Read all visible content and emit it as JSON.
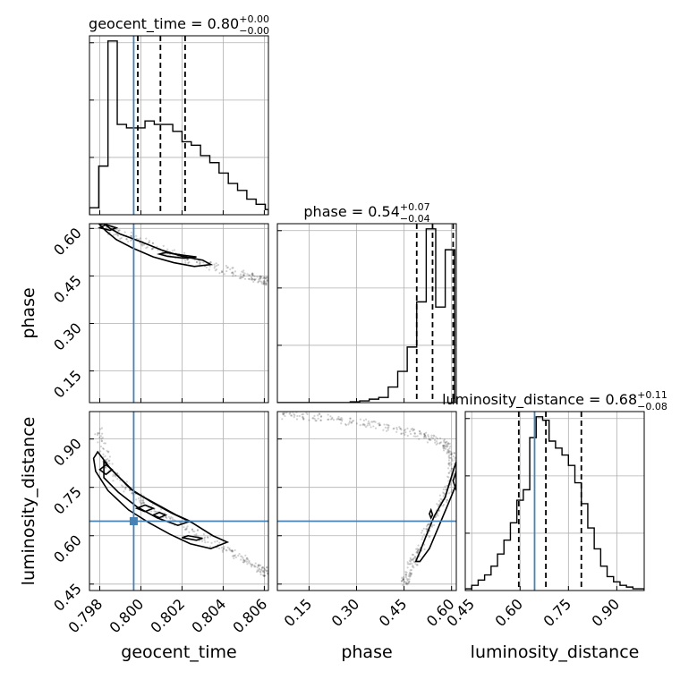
{
  "chart_data": {
    "type": "scatter",
    "parameters": [
      {
        "name": "geocent_time",
        "axis_label": "geocent_time",
        "range": [
          0.7975,
          0.8062
        ],
        "ticks": [
          0.798,
          0.8,
          0.802,
          0.804,
          0.806
        ],
        "tick_labels": [
          "0.798",
          "0.800",
          "0.802",
          "0.804",
          "0.806"
        ],
        "title": "geocent_time = 0.80",
        "title_sup": "+0.00",
        "title_sub": "−0.00"
      },
      {
        "name": "phase",
        "axis_label": "phase",
        "range": [
          0.05,
          0.615
        ],
        "ticks": [
          0.15,
          0.3,
          0.45,
          0.6
        ],
        "tick_labels": [
          "0.15",
          "0.30",
          "0.45",
          "0.60"
        ],
        "title": "phase = 0.54",
        "title_sup": "+0.07",
        "title_sub": "−0.04"
      },
      {
        "name": "luminosity_distance",
        "axis_label": "luminosity_distance",
        "range": [
          0.43,
          0.985
        ],
        "ticks": [
          0.45,
          0.6,
          0.75,
          0.9
        ],
        "tick_labels": [
          "0.45",
          "0.60",
          "0.75",
          "0.90"
        ],
        "title": "luminosity_distance = 0.68",
        "title_sup": "+0.11",
        "title_sub": "−0.08"
      }
    ],
    "truths": {
      "geocent_time": 0.79965,
      "phase": null,
      "luminosity_distance": 0.645
    },
    "quantiles": {
      "geocent_time": [
        0.79985,
        0.80095,
        0.80215
      ],
      "phase": [
        0.49,
        0.54,
        0.605
      ],
      "luminosity_distance": [
        0.596,
        0.68,
        0.79
      ]
    },
    "histograms": {
      "geocent_time": {
        "edges": [
          0.7975,
          0.79795,
          0.7984,
          0.79885,
          0.7993,
          0.79975,
          0.8002,
          0.80065,
          0.8011,
          0.80155,
          0.802,
          0.80245,
          0.8029,
          0.80335,
          0.8038,
          0.80425,
          0.8047,
          0.80515,
          0.8056,
          0.80605,
          0.8062
        ],
        "counts": [
          0.04,
          0.28,
          1.0,
          0.52,
          0.5,
          0.5,
          0.54,
          0.52,
          0.52,
          0.48,
          0.42,
          0.4,
          0.34,
          0.3,
          0.24,
          0.18,
          0.14,
          0.09,
          0.06,
          0.03
        ]
      },
      "phase": {
        "edges": [
          0.05,
          0.28,
          0.31,
          0.34,
          0.37,
          0.4,
          0.43,
          0.46,
          0.49,
          0.52,
          0.55,
          0.58,
          0.61
        ],
        "counts": [
          0,
          0.005,
          0.01,
          0.02,
          0.03,
          0.09,
          0.18,
          0.32,
          0.58,
          1.0,
          0.55,
          0.88
        ]
      },
      "luminosity_distance": {
        "edges": [
          0.43,
          0.45,
          0.47,
          0.49,
          0.51,
          0.53,
          0.55,
          0.57,
          0.59,
          0.61,
          0.63,
          0.65,
          0.67,
          0.69,
          0.71,
          0.73,
          0.75,
          0.77,
          0.79,
          0.81,
          0.83,
          0.85,
          0.87,
          0.89,
          0.91,
          0.93,
          0.95,
          0.985
        ],
        "counts": [
          0.01,
          0.03,
          0.06,
          0.09,
          0.14,
          0.21,
          0.29,
          0.39,
          0.52,
          0.58,
          0.88,
          1.0,
          0.98,
          0.86,
          0.82,
          0.78,
          0.72,
          0.62,
          0.5,
          0.36,
          0.24,
          0.14,
          0.08,
          0.05,
          0.03,
          0.02,
          0.01
        ]
      }
    },
    "contours": {
      "phase_vs_geocent_time": [
        {
          "level": "outer",
          "points": [
            [
              0.7982,
              0.615
            ],
            [
              0.7985,
              0.6
            ],
            [
              0.799,
              0.582
            ],
            [
              0.8,
              0.558
            ],
            [
              0.801,
              0.532
            ],
            [
              0.802,
              0.512
            ],
            [
              0.803,
              0.5
            ],
            [
              0.8034,
              0.486
            ],
            [
              0.8026,
              0.48
            ],
            [
              0.8016,
              0.492
            ],
            [
              0.8006,
              0.51
            ],
            [
              0.7996,
              0.538
            ],
            [
              0.7988,
              0.565
            ],
            [
              0.7983,
              0.592
            ],
            [
              0.798,
              0.612
            ]
          ]
        },
        {
          "level": "inner",
          "points": [
            [
              0.8012,
              0.524
            ],
            [
              0.802,
              0.516
            ],
            [
              0.8027,
              0.51
            ],
            [
              0.8021,
              0.506
            ],
            [
              0.8013,
              0.512
            ],
            [
              0.8009,
              0.519
            ]
          ]
        },
        {
          "level": "core",
          "points": [
            [
              0.7983,
              0.612
            ],
            [
              0.7988,
              0.602
            ],
            [
              0.7985,
              0.594
            ],
            [
              0.798,
              0.602
            ]
          ]
        }
      ],
      "luminosity_distance_vs_geocent_time": [
        {
          "level": "outer",
          "points": [
            [
              0.7979,
              0.86
            ],
            [
              0.7985,
              0.81
            ],
            [
              0.7995,
              0.745
            ],
            [
              0.8005,
              0.705
            ],
            [
              0.8015,
              0.67
            ],
            [
              0.8025,
              0.64
            ],
            [
              0.8035,
              0.6
            ],
            [
              0.8042,
              0.58
            ],
            [
              0.8034,
              0.56
            ],
            [
              0.8024,
              0.575
            ],
            [
              0.8014,
              0.605
            ],
            [
              0.8004,
              0.64
            ],
            [
              0.7994,
              0.68
            ],
            [
              0.7984,
              0.74
            ],
            [
              0.7978,
              0.8
            ],
            [
              0.7977,
              0.84
            ]
          ]
        },
        {
          "level": "middle",
          "points": [
            [
              0.7982,
              0.83
            ],
            [
              0.7988,
              0.79
            ],
            [
              0.7997,
              0.735
            ],
            [
              0.8007,
              0.7
            ],
            [
              0.8017,
              0.665
            ],
            [
              0.8024,
              0.645
            ],
            [
              0.8018,
              0.632
            ],
            [
              0.8008,
              0.655
            ],
            [
              0.7998,
              0.69
            ],
            [
              0.7989,
              0.735
            ],
            [
              0.7982,
              0.78
            ]
          ]
        },
        {
          "level": "inner",
          "points": [
            [
              0.8023,
              0.6
            ],
            [
              0.803,
              0.592
            ],
            [
              0.8027,
              0.586
            ],
            [
              0.802,
              0.594
            ]
          ]
        },
        {
          "level": "core",
          "points": [
            [
              0.7983,
              0.82
            ],
            [
              0.7986,
              0.805
            ],
            [
              0.7983,
              0.79
            ],
            [
              0.798,
              0.805
            ]
          ]
        },
        {
          "level": "core",
          "points": [
            [
              0.8002,
              0.695
            ],
            [
              0.8006,
              0.685
            ],
            [
              0.8002,
              0.675
            ],
            [
              0.7998,
              0.685
            ]
          ]
        },
        {
          "level": "core",
          "points": [
            [
              0.8009,
              0.672
            ],
            [
              0.8012,
              0.664
            ],
            [
              0.8009,
              0.656
            ],
            [
              0.8006,
              0.664
            ]
          ]
        }
      ],
      "luminosity_distance_vs_phase": [
        {
          "level": "outer",
          "points": [
            [
              0.615,
              0.83
            ],
            [
              0.605,
              0.8
            ],
            [
              0.58,
              0.72
            ],
            [
              0.545,
              0.66
            ],
            [
              0.52,
              0.6
            ],
            [
              0.5,
              0.55
            ],
            [
              0.487,
              0.52
            ],
            [
              0.5,
              0.52
            ],
            [
              0.53,
              0.56
            ],
            [
              0.56,
              0.63
            ],
            [
              0.59,
              0.7
            ],
            [
              0.615,
              0.76
            ]
          ]
        },
        {
          "level": "inner",
          "points": [
            [
              0.615,
              0.8
            ],
            [
              0.605,
              0.77
            ],
            [
              0.615,
              0.74
            ]
          ]
        },
        {
          "level": "core",
          "points": [
            [
              0.535,
              0.68
            ],
            [
              0.54,
              0.665
            ],
            [
              0.535,
              0.655
            ],
            [
              0.53,
              0.668
            ]
          ]
        }
      ]
    },
    "scatter_trails": {
      "phase_vs_geocent_time": [
        [
          0.7982,
          0.6
        ],
        [
          0.8,
          0.56
        ],
        [
          0.802,
          0.51
        ],
        [
          0.804,
          0.47
        ],
        [
          0.8055,
          0.445
        ],
        [
          0.8062,
          0.43
        ]
      ],
      "luminosity_distance_vs_geocent_time": [
        [
          0.7979,
          0.93
        ],
        [
          0.7985,
          0.8
        ],
        [
          0.8,
          0.71
        ],
        [
          0.802,
          0.63
        ],
        [
          0.804,
          0.56
        ],
        [
          0.8055,
          0.51
        ],
        [
          0.8062,
          0.48
        ]
      ],
      "luminosity_distance_vs_phase": [
        [
          0.06,
          0.975
        ],
        [
          0.2,
          0.965
        ],
        [
          0.35,
          0.945
        ],
        [
          0.48,
          0.92
        ],
        [
          0.57,
          0.89
        ],
        [
          0.605,
          0.85
        ],
        [
          0.59,
          0.75
        ],
        [
          0.54,
          0.65
        ],
        [
          0.5,
          0.56
        ],
        [
          0.47,
          0.5
        ],
        [
          0.45,
          0.45
        ]
      ]
    }
  }
}
